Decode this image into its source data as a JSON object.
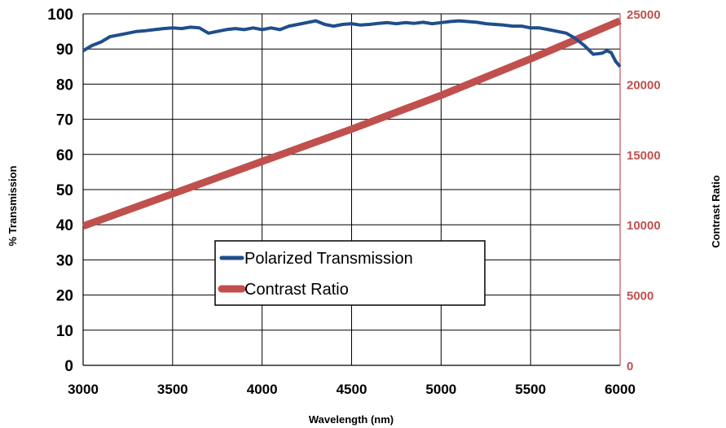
{
  "chart_data": {
    "type": "line",
    "title": "",
    "xlabel": "Wavelength (nm)",
    "ylabel": "% Transmission",
    "y2label": "Contrast Ratio",
    "xlim": [
      3000,
      6000
    ],
    "ylim": [
      0,
      100
    ],
    "y2lim": [
      0,
      25000
    ],
    "x_ticks": [
      "3000",
      "3500",
      "4000",
      "4500",
      "5000",
      "5500",
      "6000"
    ],
    "y_ticks": [
      "0",
      "10",
      "20",
      "30",
      "40",
      "50",
      "60",
      "70",
      "80",
      "90",
      "100"
    ],
    "y2_ticks": [
      "0",
      "5000",
      "10000",
      "15000",
      "20000",
      "25000"
    ],
    "grid": true,
    "legend_position": "center-bottom",
    "colors": {
      "series1": "#1f4e8c",
      "series2": "#c0504d",
      "y2_axis": "#c0504d"
    },
    "series": [
      {
        "name": "Polarized Transmission",
        "axis": "left",
        "x": [
          3000,
          3050,
          3100,
          3150,
          3200,
          3250,
          3300,
          3350,
          3400,
          3450,
          3500,
          3550,
          3600,
          3650,
          3700,
          3750,
          3800,
          3850,
          3900,
          3950,
          4000,
          4050,
          4100,
          4150,
          4200,
          4250,
          4300,
          4350,
          4400,
          4450,
          4500,
          4550,
          4600,
          4650,
          4700,
          4750,
          4800,
          4850,
          4900,
          4950,
          5000,
          5050,
          5100,
          5150,
          5200,
          5250,
          5300,
          5350,
          5400,
          5450,
          5500,
          5550,
          5600,
          5650,
          5700,
          5750,
          5800,
          5850,
          5900,
          5925,
          5950,
          5975,
          6000
        ],
        "values": [
          89.5,
          91.0,
          92.0,
          93.5,
          94.0,
          94.5,
          95.0,
          95.2,
          95.5,
          95.8,
          96.0,
          95.8,
          96.2,
          96.0,
          94.5,
          95.0,
          95.5,
          95.8,
          95.5,
          96.0,
          95.5,
          96.0,
          95.5,
          96.5,
          97.0,
          97.5,
          98.0,
          97.0,
          96.5,
          97.0,
          97.2,
          96.8,
          97.0,
          97.3,
          97.5,
          97.2,
          97.5,
          97.3,
          97.6,
          97.2,
          97.5,
          97.8,
          98.0,
          97.8,
          97.6,
          97.2,
          97.0,
          96.8,
          96.5,
          96.5,
          96.0,
          96.0,
          95.5,
          95.0,
          94.5,
          93.0,
          91.0,
          88.5,
          88.8,
          89.5,
          89.0,
          86.5,
          85.0
        ]
      },
      {
        "name": "Contrast Ratio",
        "axis": "right",
        "x": [
          3000,
          3500,
          4000,
          4500,
          5000,
          5500,
          6000
        ],
        "values": [
          9900,
          12200,
          14500,
          16800,
          19200,
          21800,
          24500
        ]
      }
    ]
  }
}
